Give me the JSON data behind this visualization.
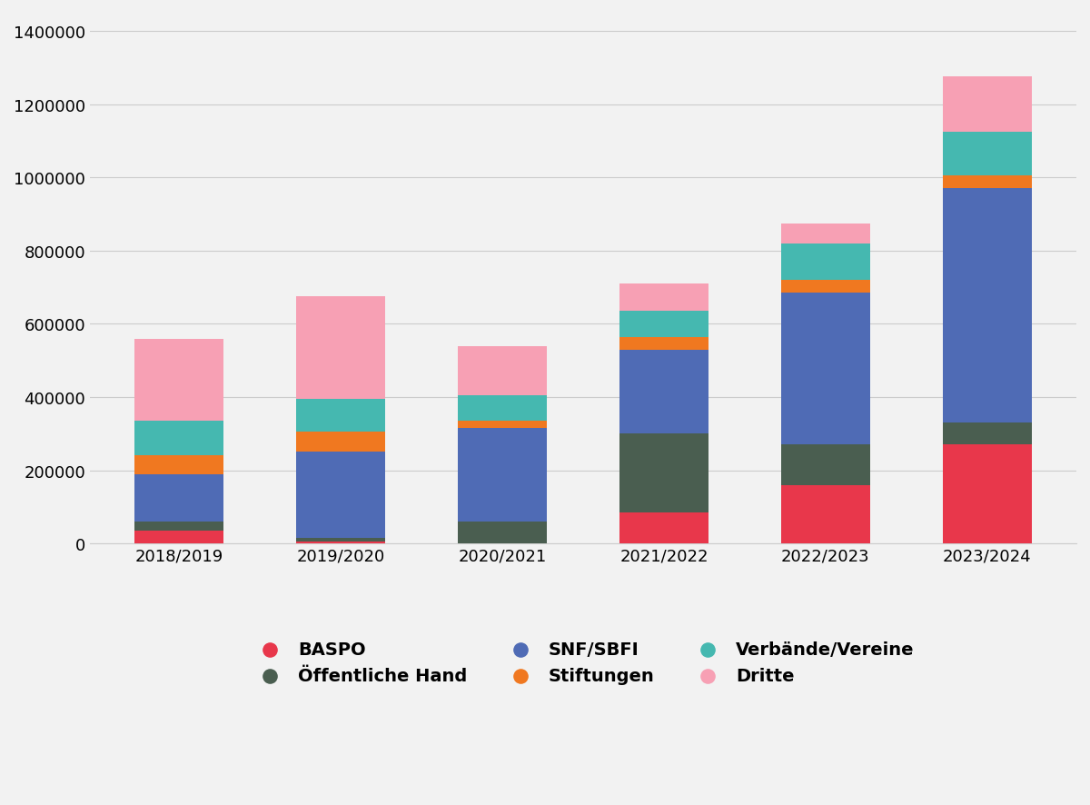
{
  "categories": [
    "2018/2019",
    "2019/2020",
    "2020/2021",
    "2021/2022",
    "2022/2023",
    "2023/2024"
  ],
  "series": {
    "BASPO": [
      35000,
      5000,
      0,
      85000,
      160000,
      270000
    ],
    "Öffentliche Hand": [
      25000,
      10000,
      60000,
      215000,
      110000,
      60000
    ],
    "SNF/SBFI": [
      130000,
      235000,
      255000,
      230000,
      415000,
      640000
    ],
    "Stiftungen": [
      50000,
      55000,
      20000,
      35000,
      35000,
      35000
    ],
    "Verbände/Vereine": [
      95000,
      90000,
      70000,
      70000,
      100000,
      120000
    ],
    "Dritte": [
      225000,
      280000,
      135000,
      75000,
      55000,
      150000
    ]
  },
  "colors": {
    "BASPO": "#e8374b",
    "Öffentliche Hand": "#4a5e50",
    "SNF/SBFI": "#4f6bb5",
    "Stiftungen": "#f07820",
    "Verbände/Vereine": "#45b8b0",
    "Dritte": "#f7a0b4"
  },
  "stack_order": [
    "BASPO",
    "Öffentliche Hand",
    "SNF/SBFI",
    "Stiftungen",
    "Verbände/Vereine",
    "Dritte"
  ],
  "legend_order": [
    "BASPO",
    "Öffentliche Hand",
    "SNF/SBFI",
    "Stiftungen",
    "Verbände/Vereine",
    "Dritte"
  ],
  "ylim": [
    0,
    1450000
  ],
  "yticks": [
    0,
    200000,
    400000,
    600000,
    800000,
    1000000,
    1200000,
    1400000
  ],
  "background_color": "#f2f2f2",
  "bar_width": 0.55,
  "grid_color": "#cccccc",
  "tick_fontsize": 13,
  "legend_fontsize": 14
}
